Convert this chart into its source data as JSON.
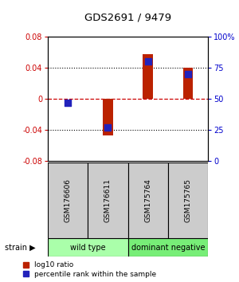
{
  "title": "GDS2691 / 9479",
  "samples": [
    "GSM176606",
    "GSM176611",
    "GSM175764",
    "GSM175765"
  ],
  "log10_ratio": [
    0.0,
    -0.047,
    0.057,
    0.04
  ],
  "percentile_rank": [
    0.47,
    0.27,
    0.8,
    0.7
  ],
  "ylim_left": [
    -0.08,
    0.08
  ],
  "ylim_right": [
    0,
    1.0
  ],
  "yticks_left": [
    -0.08,
    -0.04,
    0,
    0.04,
    0.08
  ],
  "yticks_right": [
    0,
    0.25,
    0.5,
    0.75,
    1.0
  ],
  "ytick_labels_right": [
    "0",
    "25",
    "50",
    "75",
    "100%"
  ],
  "ytick_labels_left": [
    "-0.08",
    "-0.04",
    "0",
    "0.04",
    "0.08"
  ],
  "bar_color": "#bb2200",
  "dot_color": "#2222bb",
  "strain_groups": [
    {
      "label": "wild type",
      "samples": [
        0,
        1
      ],
      "color": "#aaffaa"
    },
    {
      "label": "dominant negative",
      "samples": [
        2,
        3
      ],
      "color": "#77ee77"
    }
  ],
  "strain_label": "strain",
  "legend_red_label": "log10 ratio",
  "legend_blue_label": "percentile rank within the sample",
  "bg_color": "#ffffff",
  "sample_box_color": "#cccccc",
  "hline_color": "#cc0000"
}
